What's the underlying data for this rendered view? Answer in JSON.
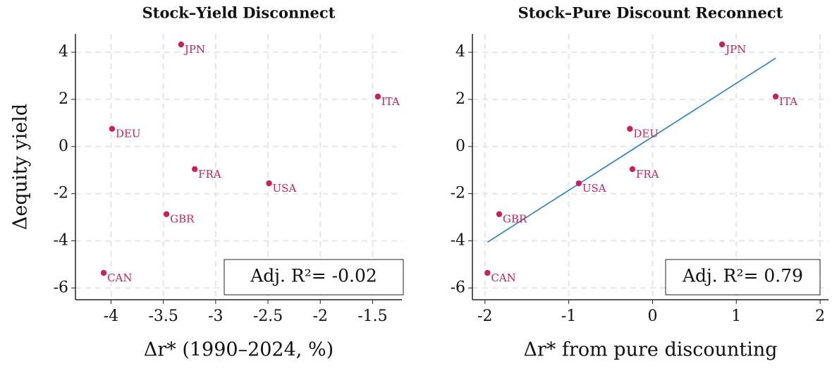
{
  "chart_data": [
    {
      "type": "scatter",
      "title": "Stock–Yield Disconnect",
      "xlabel": "Δr* (1990–2024, %)",
      "ylabel": "Δequity yield",
      "labels": [
        "JPN",
        "ITA",
        "DEU",
        "FRA",
        "USA",
        "GBR",
        "CAN"
      ],
      "x": [
        -3.33,
        -1.45,
        -3.99,
        -3.2,
        -2.49,
        -3.47,
        -4.07
      ],
      "y": [
        4.33,
        2.12,
        0.75,
        -0.96,
        -1.56,
        -2.87,
        -5.36
      ],
      "color": "#cc1f5a",
      "xlim": [
        -4.34,
        -1.22
      ],
      "ylim": [
        -6.5,
        4.78
      ],
      "xticks": [
        -4,
        -3.5,
        -3,
        -2.5,
        -2,
        -1.5
      ],
      "yticks": [
        -6,
        -4,
        -2,
        0,
        2,
        4
      ],
      "grid": true,
      "annotation": "Adj. R²= -0.02"
    },
    {
      "type": "scatter",
      "title": "Stock–Pure Discount Reconnect",
      "xlabel": "Δr* from pure discounting",
      "labels": [
        "JPN",
        "ITA",
        "DEU",
        "FRA",
        "USA",
        "GBR",
        "CAN"
      ],
      "x": [
        0.83,
        1.47,
        -0.27,
        -0.24,
        -0.88,
        -1.83,
        -1.97
      ],
      "y": [
        4.33,
        2.12,
        0.75,
        -0.96,
        -1.56,
        -2.87,
        -5.36
      ],
      "color": "#cc1f5a",
      "xlim": [
        -2.15,
        2.1
      ],
      "ylim": [
        -6.5,
        4.78
      ],
      "xticks": [
        -2,
        -1,
        0,
        1,
        2
      ],
      "yticks": [
        -6,
        -4,
        -2,
        0,
        2,
        4
      ],
      "grid": true,
      "fit_line": {
        "x": [
          -1.97,
          1.47
        ],
        "y": [
          -4.06,
          3.75
        ],
        "color": "#1e7fe0"
      },
      "annotation": "Adj. R²= 0.79"
    }
  ]
}
